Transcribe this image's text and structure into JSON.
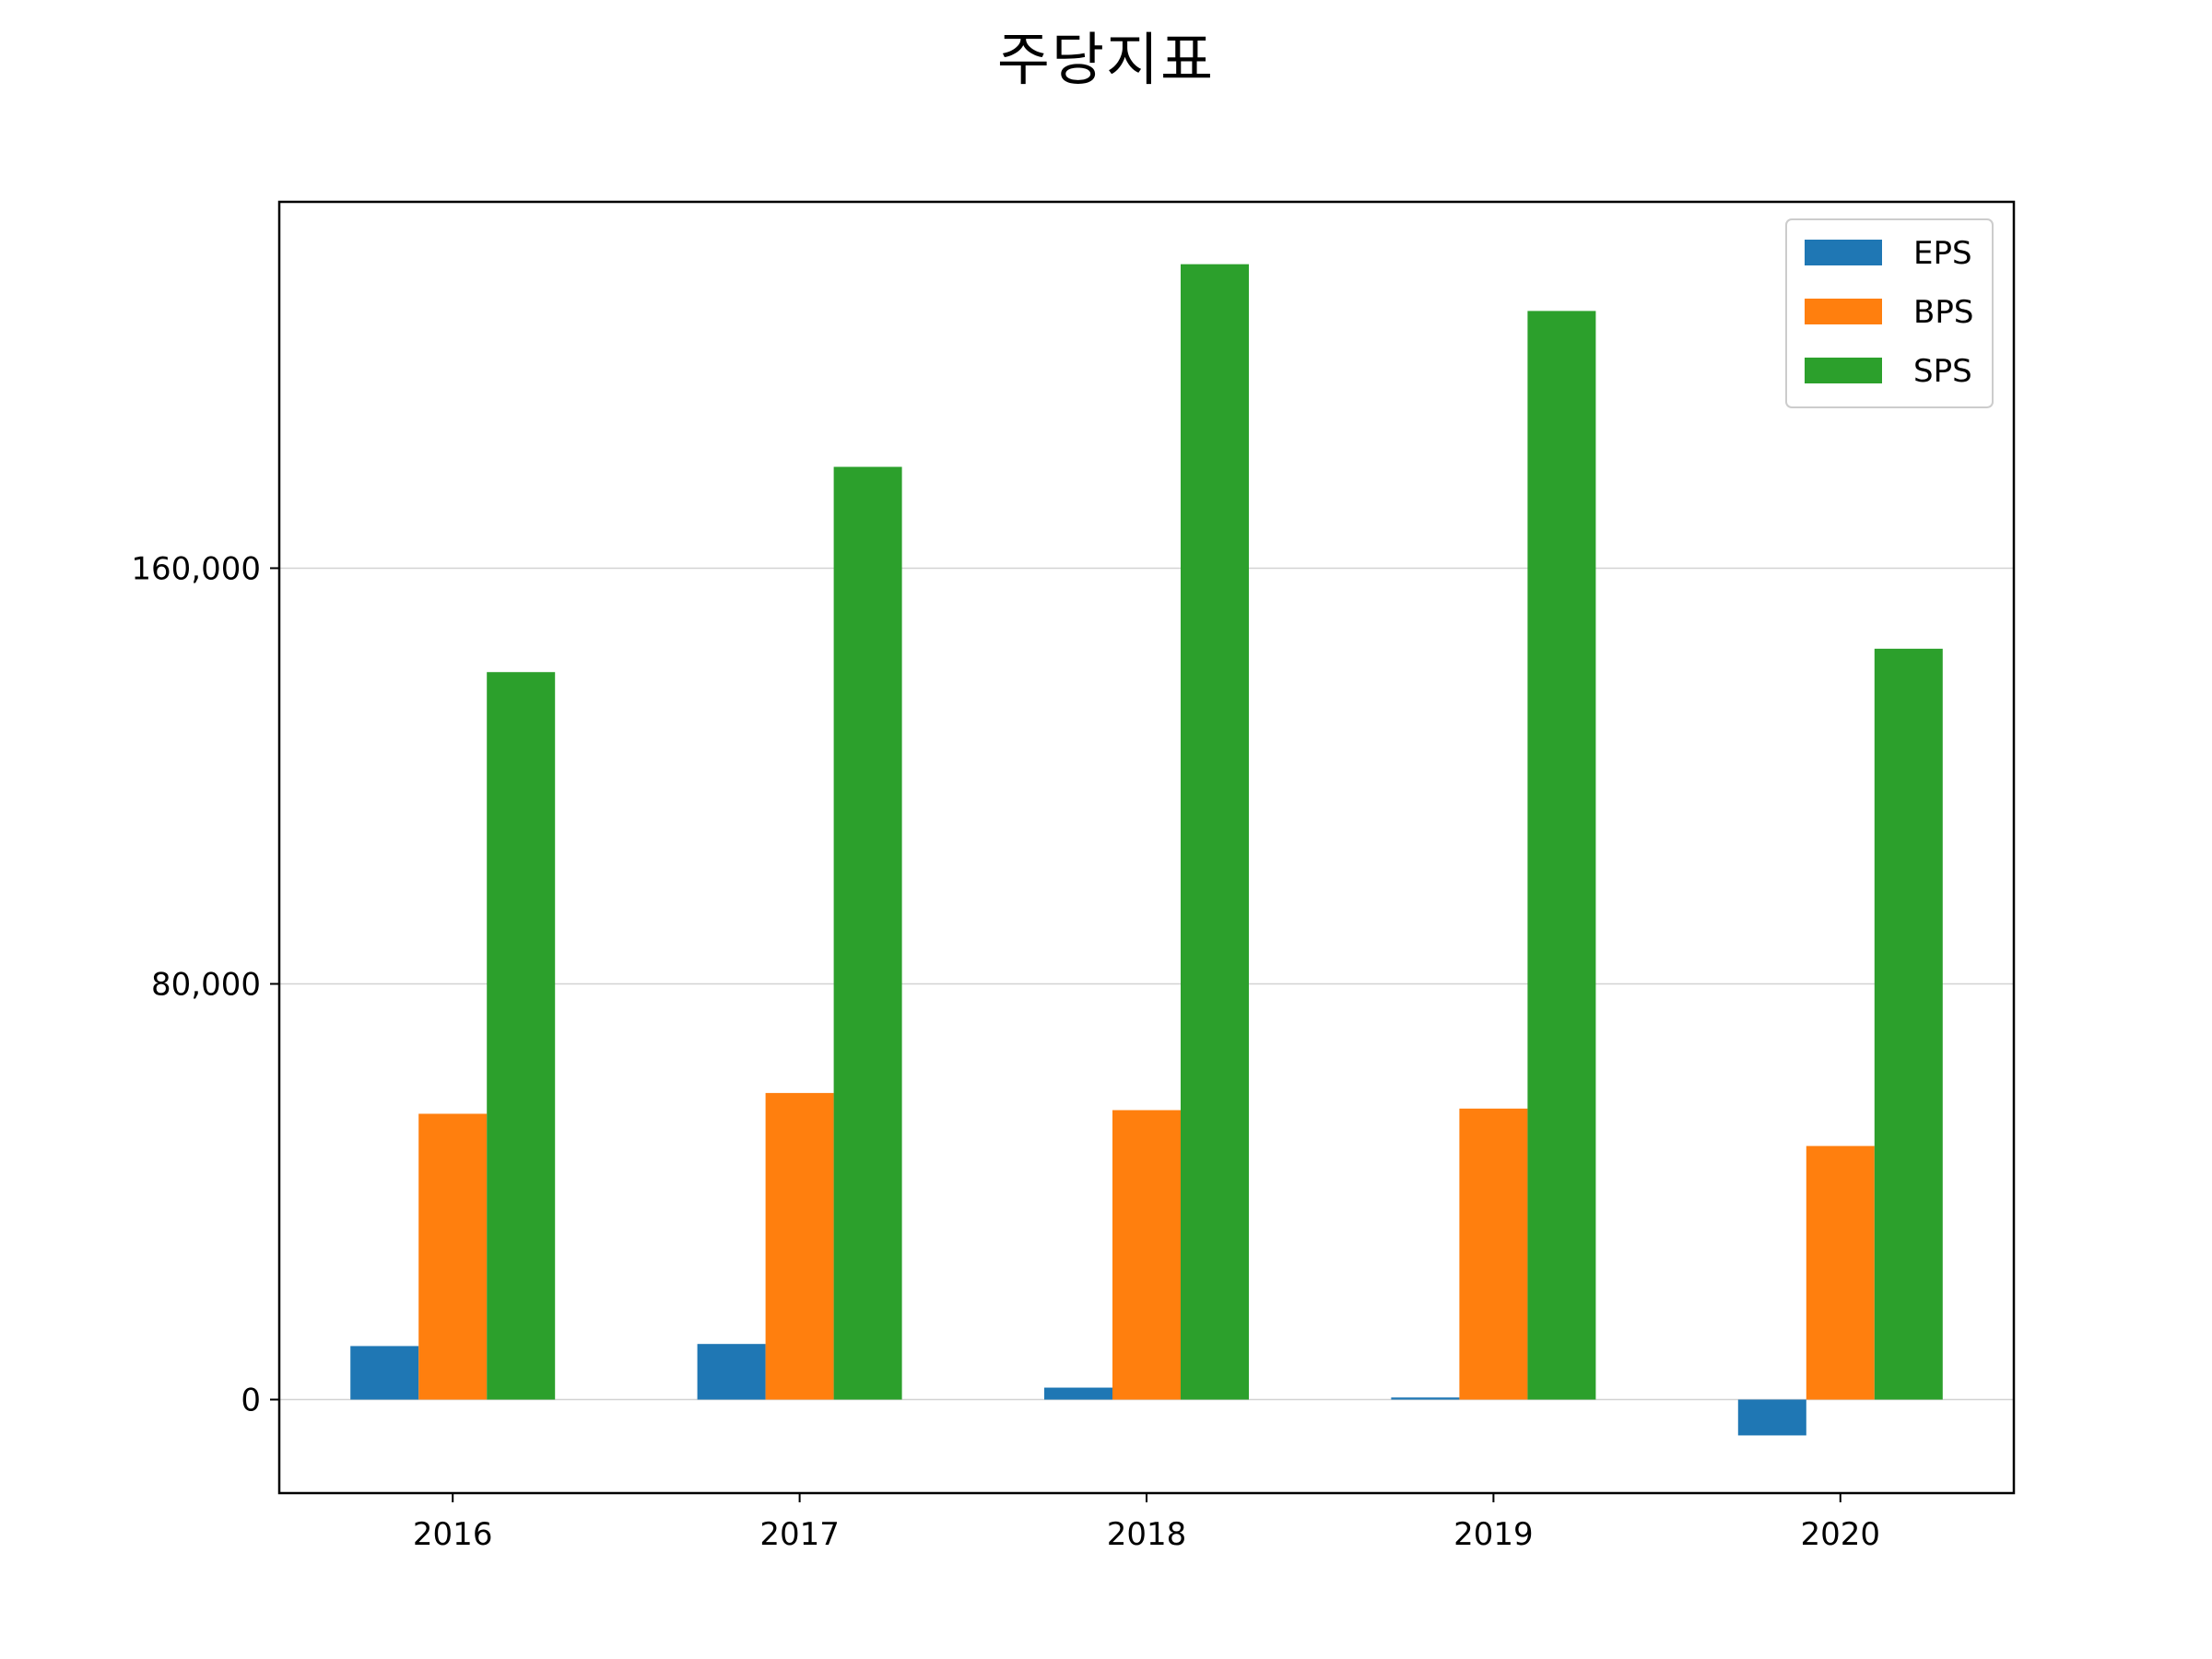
{
  "chart_data": {
    "type": "bar",
    "title": "주당지표",
    "xlabel": "",
    "ylabel": "",
    "categories": [
      "2016",
      "2017",
      "2018",
      "2019",
      "2020"
    ],
    "series": [
      {
        "name": "EPS",
        "color": "#1f77b4",
        "values": [
          10300,
          10700,
          2300,
          400,
          -6900
        ]
      },
      {
        "name": "BPS",
        "color": "#ff7f0e",
        "values": [
          55000,
          59000,
          55700,
          56000,
          48800
        ]
      },
      {
        "name": "SPS",
        "color": "#2ca02c",
        "values": [
          140000,
          179500,
          218500,
          209500,
          144500
        ]
      }
    ],
    "ylim": [
      -18000,
      230500
    ],
    "yticks": [
      0,
      80000,
      160000
    ],
    "ytick_labels": [
      "0",
      "80,000",
      "160,000"
    ],
    "grid": "horizontal",
    "legend_position": "top-right"
  }
}
